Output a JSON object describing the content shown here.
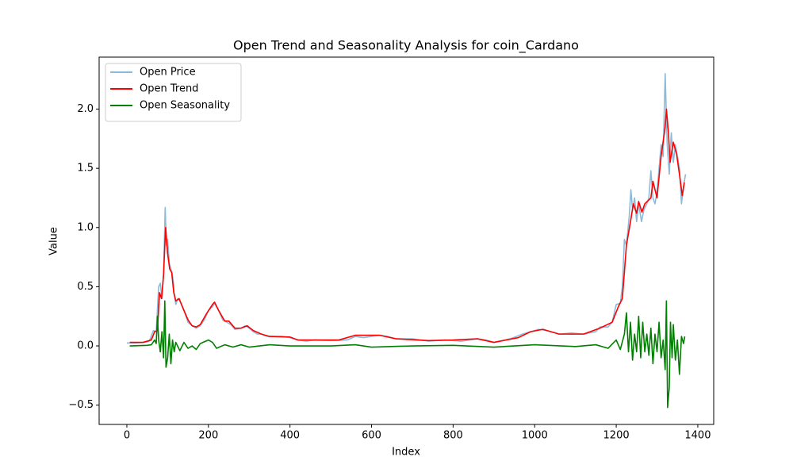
{
  "chart_data": {
    "type": "line",
    "title": "Open Trend and Seasonality Analysis for coin_Cardano",
    "xlabel": "Index",
    "ylabel": "Value",
    "xlim": [
      -68,
      1439
    ],
    "ylim": [
      -0.663,
      2.439
    ],
    "xticks": [
      0,
      200,
      400,
      600,
      800,
      1000,
      1200,
      1400
    ],
    "yticks": [
      {
        "value": -0.5,
        "label": "−0.5"
      },
      {
        "value": 0,
        "label": "0.0"
      },
      {
        "value": 0.5,
        "label": "0.5"
      },
      {
        "value": 1,
        "label": "1.0"
      },
      {
        "value": 1.5,
        "label": "1.5"
      },
      {
        "value": 2,
        "label": "2.0"
      }
    ],
    "legend": "upper left",
    "series": [
      {
        "name": "Open Price",
        "color": "#8ebad9",
        "x": [
          0,
          20,
          40,
          55,
          65,
          72,
          78,
          82,
          86,
          90,
          94,
          97,
          100,
          104,
          108,
          112,
          116,
          120,
          125,
          130,
          140,
          150,
          160,
          170,
          180,
          190,
          200,
          210,
          215,
          225,
          235,
          245,
          255,
          265,
          280,
          290,
          300,
          310,
          320,
          330,
          345,
          360,
          380,
          400,
          420,
          440,
          460,
          500,
          540,
          560,
          580,
          600,
          620,
          640,
          660,
          700,
          740,
          780,
          820,
          860,
          880,
          900,
          940,
          970,
          990,
          1010,
          1030,
          1060,
          1090,
          1120,
          1150,
          1160,
          1180,
          1190,
          1200,
          1210,
          1215,
          1220,
          1225,
          1232,
          1236,
          1240,
          1245,
          1250,
          1255,
          1262,
          1268,
          1275,
          1280,
          1285,
          1290,
          1295,
          1300,
          1305,
          1310,
          1315,
          1320,
          1325,
          1330,
          1335,
          1340,
          1345,
          1350,
          1355,
          1360,
          1365,
          1370
        ],
        "values": [
          0.025,
          0.025,
          0.03,
          0.04,
          0.13,
          0.12,
          0.5,
          0.53,
          0.4,
          0.6,
          1.17,
          0.85,
          0.9,
          0.7,
          0.65,
          0.6,
          0.45,
          0.35,
          0.4,
          0.38,
          0.3,
          0.2,
          0.17,
          0.15,
          0.17,
          0.22,
          0.3,
          0.33,
          0.36,
          0.3,
          0.22,
          0.2,
          0.18,
          0.14,
          0.15,
          0.17,
          0.15,
          0.12,
          0.1,
          0.1,
          0.08,
          0.08,
          0.08,
          0.07,
          0.05,
          0.04,
          0.05,
          0.045,
          0.05,
          0.08,
          0.07,
          0.08,
          0.09,
          0.08,
          0.06,
          0.06,
          0.04,
          0.05,
          0.04,
          0.06,
          0.05,
          0.03,
          0.06,
          0.1,
          0.12,
          0.14,
          0.13,
          0.1,
          0.11,
          0.1,
          0.12,
          0.16,
          0.16,
          0.2,
          0.35,
          0.36,
          0.5,
          0.9,
          0.85,
          1.1,
          1.32,
          1.15,
          1.25,
          1.05,
          1.2,
          1.05,
          1.15,
          1.2,
          1.25,
          1.48,
          1.25,
          1.2,
          1.3,
          1.5,
          1.7,
          1.6,
          2.3,
          1.7,
          1.45,
          1.8,
          1.55,
          1.7,
          1.6,
          1.5,
          1.2,
          1.35,
          1.45
        ]
      },
      {
        "name": "Open Trend",
        "color": "#ff0000",
        "x": [
          7,
          40,
          60,
          68,
          75,
          80,
          85,
          90,
          95,
          100,
          105,
          110,
          115,
          120,
          128,
          140,
          150,
          160,
          170,
          180,
          195,
          210,
          215,
          225,
          240,
          250,
          265,
          280,
          295,
          310,
          330,
          350,
          400,
          420,
          460,
          520,
          560,
          620,
          660,
          740,
          800,
          860,
          900,
          960,
          990,
          1020,
          1060,
          1120,
          1160,
          1190,
          1205,
          1215,
          1225,
          1235,
          1242,
          1250,
          1255,
          1263,
          1270,
          1285,
          1290,
          1300,
          1310,
          1320,
          1323,
          1328,
          1332,
          1340,
          1348,
          1355,
          1362,
          1367
        ],
        "values": [
          0.03,
          0.03,
          0.05,
          0.12,
          0.13,
          0.45,
          0.4,
          0.6,
          1.0,
          0.78,
          0.65,
          0.62,
          0.45,
          0.38,
          0.4,
          0.3,
          0.22,
          0.17,
          0.16,
          0.18,
          0.27,
          0.35,
          0.37,
          0.3,
          0.21,
          0.21,
          0.15,
          0.15,
          0.17,
          0.13,
          0.1,
          0.08,
          0.075,
          0.05,
          0.05,
          0.05,
          0.09,
          0.09,
          0.06,
          0.045,
          0.05,
          0.06,
          0.03,
          0.07,
          0.12,
          0.14,
          0.1,
          0.1,
          0.15,
          0.2,
          0.33,
          0.4,
          0.85,
          1.05,
          1.2,
          1.12,
          1.22,
          1.13,
          1.2,
          1.25,
          1.39,
          1.25,
          1.6,
          1.85,
          2.0,
          1.8,
          1.55,
          1.72,
          1.62,
          1.45,
          1.27,
          1.38
        ]
      },
      {
        "name": "Open Seasonality",
        "color": "#008000",
        "x": [
          7,
          50,
          60,
          68,
          72,
          75,
          78,
          82,
          86,
          90,
          93,
          96,
          100,
          104,
          108,
          112,
          116,
          120,
          130,
          140,
          150,
          160,
          170,
          180,
          200,
          210,
          220,
          240,
          260,
          280,
          300,
          350,
          400,
          500,
          560,
          600,
          700,
          800,
          900,
          1000,
          1100,
          1150,
          1180,
          1200,
          1210,
          1220,
          1225,
          1230,
          1235,
          1240,
          1245,
          1250,
          1255,
          1260,
          1265,
          1270,
          1275,
          1280,
          1285,
          1290,
          1295,
          1300,
          1305,
          1310,
          1315,
          1320,
          1323,
          1326,
          1330,
          1333,
          1337,
          1340,
          1345,
          1350,
          1355,
          1360,
          1365,
          1368
        ],
        "values": [
          0,
          0.005,
          0.01,
          0.05,
          0.02,
          0.25,
          0.05,
          -0.05,
          0.12,
          -0.1,
          0.38,
          -0.18,
          -0.1,
          0.1,
          -0.15,
          0.05,
          -0.05,
          0.03,
          -0.04,
          0.03,
          -0.02,
          0,
          -0.03,
          0.02,
          0.05,
          0.03,
          -0.02,
          0.01,
          -0.01,
          0.01,
          -0.01,
          0.01,
          0,
          0,
          0.01,
          -0.01,
          0,
          0.005,
          -0.01,
          0.01,
          -0.005,
          0.01,
          -0.02,
          0.05,
          -0.03,
          0.1,
          0.28,
          -0.05,
          0.2,
          -0.12,
          0.1,
          -0.05,
          0.25,
          -0.1,
          0.2,
          -0.05,
          0.1,
          -0.08,
          0.15,
          -0.15,
          0.1,
          -0.05,
          0.2,
          -0.1,
          0.05,
          -0.2,
          0.38,
          -0.52,
          -0.35,
          0.2,
          -0.1,
          0.18,
          -0.12,
          0.05,
          -0.24,
          0.08,
          0.02,
          0.08
        ]
      }
    ]
  }
}
